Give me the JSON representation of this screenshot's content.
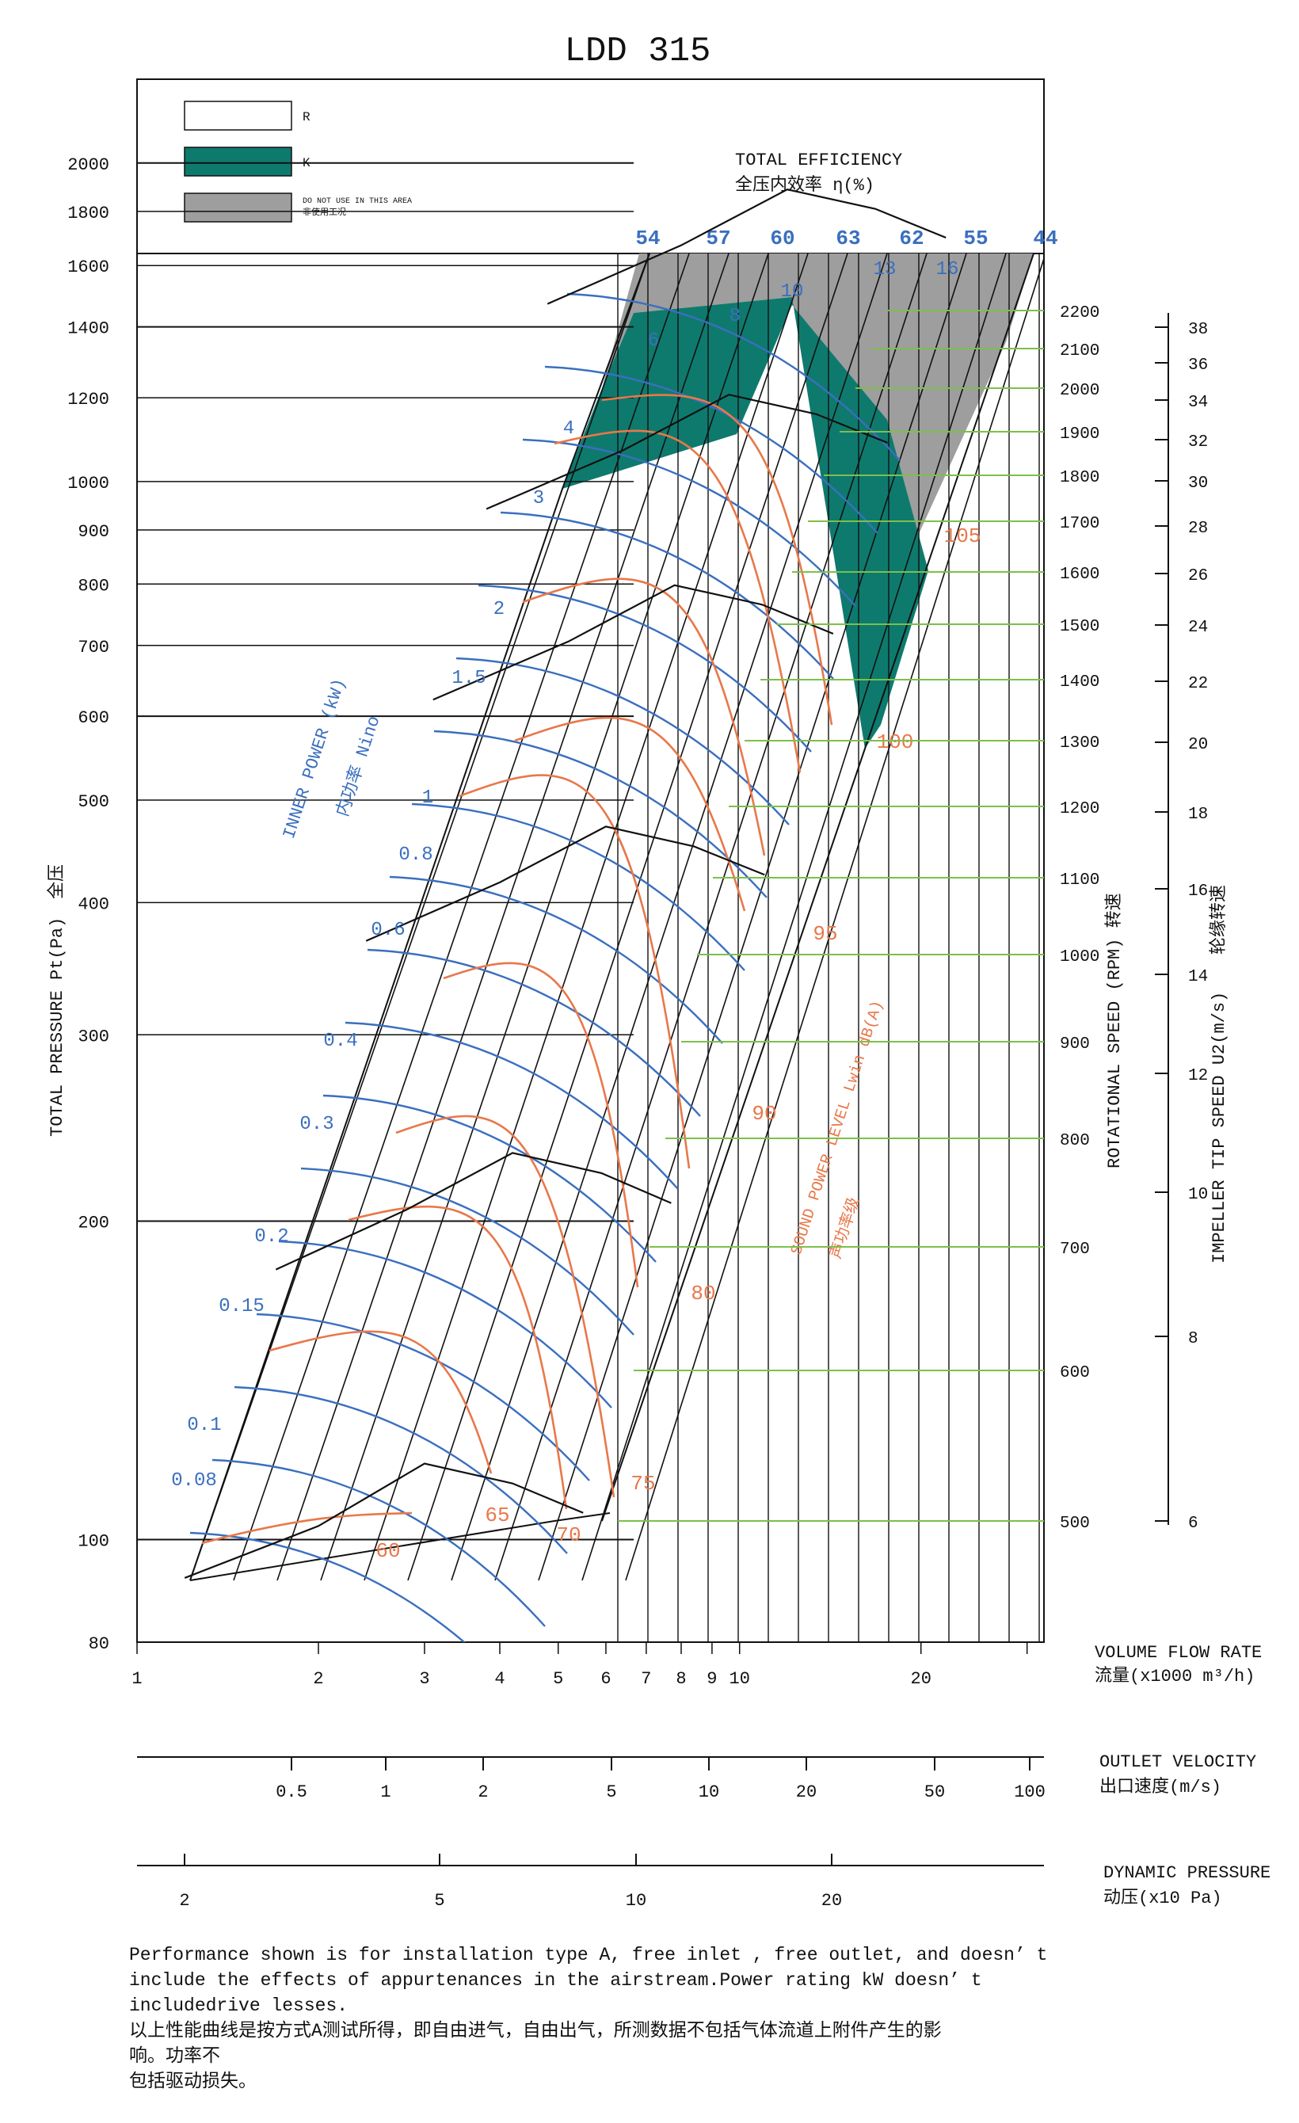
{
  "title": "LDD 315",
  "legend": [
    {
      "swatch": "white",
      "label": "R"
    },
    {
      "swatch": "teal",
      "label": "K"
    },
    {
      "swatch": "gray",
      "label": "DO NOT USE IN THIS AREA",
      "label2": "非使用工况"
    }
  ],
  "efficiency": {
    "title": "TOTAL EFFICIENCY",
    "title_cn": "全压内效率  η(%)",
    "values": [
      "54",
      "57",
      "60",
      "63",
      "62",
      "55",
      "44"
    ]
  },
  "y_axis": {
    "label": "TOTAL PRESSURE Pt(Pa)",
    "label_cn": "全压",
    "ticks": [
      "2000",
      "1800",
      "1600",
      "1400",
      "1200",
      "1000",
      "900",
      "800",
      "700",
      "600",
      "500",
      "400",
      "300",
      "200",
      "100",
      "80"
    ],
    "range": [
      80,
      2400
    ]
  },
  "x_axis": {
    "label": "VOLUME FLOW RATE",
    "label_cn": "流量(x1000 m³/h)",
    "ticks": [
      "1",
      "2",
      "3",
      "4",
      "5",
      "6",
      "7",
      "8",
      "9",
      "10",
      "20"
    ],
    "range": [
      1,
      32
    ]
  },
  "rpm_axis": {
    "label": "ROTATIONAL SPEED (RPM) 转速",
    "ticks": [
      "2200",
      "2100",
      "2000",
      "1900",
      "1800",
      "1700",
      "1600",
      "1500",
      "1400",
      "1300",
      "1200",
      "1100",
      "1000",
      "900",
      "800",
      "700",
      "600",
      "500"
    ]
  },
  "tip_speed_axis": {
    "label": "IMPELLER TIP SPEED U2(m/s)",
    "label_cn": "轮缘转速",
    "ticks": [
      "38",
      "36",
      "34",
      "32",
      "30",
      "28",
      "26",
      "24",
      "22",
      "20",
      "18",
      "16",
      "14",
      "12",
      "10",
      "8",
      "6"
    ]
  },
  "outlet_velocity": {
    "label": "OUTLET VELOCITY",
    "label_cn": "出口速度(m/s)",
    "ticks": [
      "0.5",
      "1",
      "2",
      "5",
      "10",
      "20",
      "50",
      "100"
    ]
  },
  "dynamic_pressure": {
    "label": "DYNAMIC PRESSURE",
    "label_cn": "动压(x10 Pa)",
    "ticks": [
      "2",
      "5",
      "10",
      "20"
    ]
  },
  "inner_power": {
    "label": "INNER POWER (kW)",
    "label_cn": "内功率 Nino",
    "values": [
      "0.08",
      "0.1",
      "0.15",
      "0.2",
      "0.3",
      "0.4",
      "0.6",
      "0.8",
      "1",
      "1.5",
      "2",
      "3",
      "4",
      "6",
      "8",
      "10",
      "13",
      "16"
    ]
  },
  "sound_power": {
    "label": "SOUND POWER LEVEL Lwin dB(A)",
    "label_cn": "声功率级",
    "values": [
      "60",
      "65",
      "70",
      "75",
      "80",
      "90",
      "95",
      "100",
      "105"
    ]
  },
  "chart_data": {
    "type": "line",
    "title": "LDD 315",
    "xlabel": "VOLUME FLOW RATE (x1000 m³/h)",
    "ylabel": "TOTAL PRESSURE Pt(Pa)",
    "xscale": "log",
    "yscale": "log",
    "xlim": [
      1,
      32
    ],
    "ylim": [
      80,
      2400
    ],
    "series": [
      {
        "name": "500 RPM",
        "x": [
          1.2,
          2.0,
          3.0,
          4.2,
          5.5
        ],
        "y": [
          92,
          103,
          118,
          113,
          106
        ]
      },
      {
        "name": "700 RPM",
        "x": [
          1.7,
          2.8,
          4.2,
          5.9,
          7.7
        ],
        "y": [
          180,
          205,
          232,
          222,
          208
        ]
      },
      {
        "name": "1000 RPM",
        "x": [
          2.4,
          4.0,
          6.0,
          8.4,
          11.0
        ],
        "y": [
          368,
          418,
          472,
          452,
          425
        ]
      },
      {
        "name": "1300 RPM",
        "x": [
          3.1,
          5.2,
          7.8,
          10.9,
          14.3
        ],
        "y": [
          622,
          706,
          798,
          765,
          718
        ]
      },
      {
        "name": "1600 RPM",
        "x": [
          3.8,
          6.4,
          9.6,
          13.4,
          17.6
        ],
        "y": [
          942,
          1070,
          1208,
          1158,
          1088
        ]
      },
      {
        "name": "2000 RPM",
        "x": [
          4.8,
          8.0,
          12.0,
          16.8,
          22.0
        ],
        "y": [
          1472,
          1672,
          1888,
          1810,
          1700
        ]
      }
    ]
  },
  "footnote": [
    "Performance shown is for installation type A, free inlet , free outlet, and doesn’ t",
    "include the effects of appurtenances in the airstream.Power rating kW doesn’ t",
    "includedrive lesses.",
    "以上性能曲线是按方式A测试所得，即自由进气，自由出气，所测数据不包括气体流道上附件产生的影",
    "响。功率不",
    "包括驱动损失。"
  ],
  "colors": {
    "teal": "#0e7a6e",
    "gray": "#9e9e9e",
    "blue": "#3a6fbf",
    "orange": "#e8784a",
    "green": "#7cc04a"
  }
}
